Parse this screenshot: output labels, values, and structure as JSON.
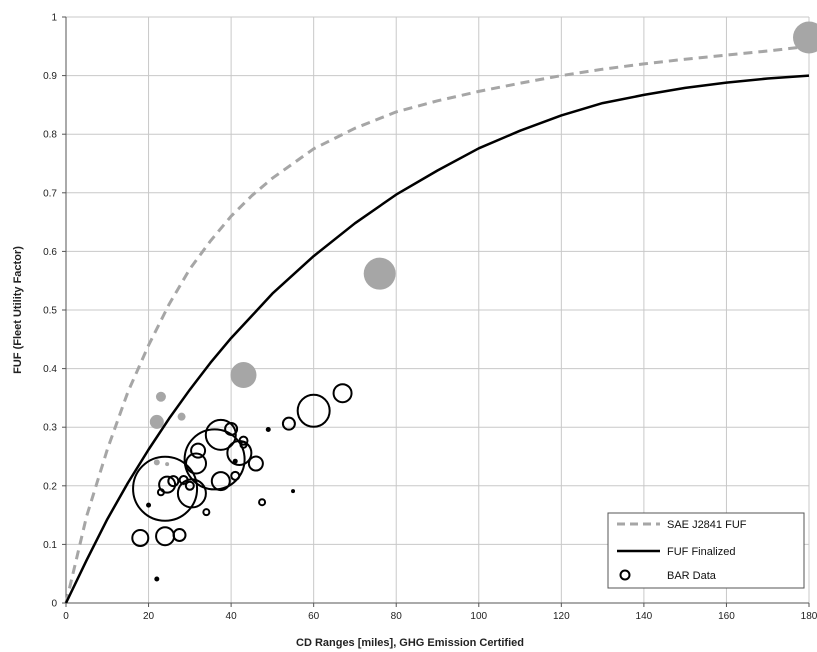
{
  "chart_data": {
    "type": "scatter",
    "xlabel": "CD Ranges [miles], GHG Emission Certified",
    "ylabel": "FUF (Fleet Utility Factor)",
    "xlim": [
      0,
      180
    ],
    "ylim": [
      0,
      1
    ],
    "x_ticks": [
      "0",
      "20",
      "40",
      "60",
      "80",
      "100",
      "120",
      "140",
      "160",
      "180"
    ],
    "y_ticks": [
      "0",
      "0.1",
      "0.2",
      "0.3",
      "0.4",
      "0.5",
      "0.6",
      "0.7",
      "0.8",
      "0.9",
      "1"
    ],
    "grid": true,
    "legend_position": "bottom-right",
    "colors": {
      "sae": "#a6a6a6",
      "finalized": "#000000",
      "bar": "#000000",
      "gray_bubble": "#a6a6a6"
    },
    "series": [
      {
        "name": "SAE J2841 FUF",
        "kind": "line",
        "style": "dashed",
        "color": "#a6a6a6",
        "points": [
          [
            0,
            0
          ],
          [
            5,
            0.148
          ],
          [
            10,
            0.262
          ],
          [
            15,
            0.36
          ],
          [
            20,
            0.44
          ],
          [
            25,
            0.51
          ],
          [
            30,
            0.57
          ],
          [
            35,
            0.618
          ],
          [
            40,
            0.66
          ],
          [
            45,
            0.695
          ],
          [
            50,
            0.725
          ],
          [
            60,
            0.775
          ],
          [
            70,
            0.81
          ],
          [
            80,
            0.838
          ],
          [
            90,
            0.857
          ],
          [
            100,
            0.873
          ],
          [
            110,
            0.887
          ],
          [
            120,
            0.9
          ],
          [
            130,
            0.911
          ],
          [
            140,
            0.92
          ],
          [
            150,
            0.928
          ],
          [
            160,
            0.935
          ],
          [
            170,
            0.942
          ],
          [
            180,
            0.95
          ]
        ]
      },
      {
        "name": "FUF Finalized",
        "kind": "line",
        "style": "solid",
        "color": "#000000",
        "points": [
          [
            0,
            0
          ],
          [
            5,
            0.073
          ],
          [
            10,
            0.143
          ],
          [
            15,
            0.205
          ],
          [
            20,
            0.262
          ],
          [
            25,
            0.315
          ],
          [
            30,
            0.364
          ],
          [
            35,
            0.41
          ],
          [
            40,
            0.452
          ],
          [
            45,
            0.49
          ],
          [
            50,
            0.528
          ],
          [
            60,
            0.592
          ],
          [
            70,
            0.648
          ],
          [
            80,
            0.697
          ],
          [
            90,
            0.738
          ],
          [
            100,
            0.776
          ],
          [
            110,
            0.806
          ],
          [
            120,
            0.832
          ],
          [
            130,
            0.853
          ],
          [
            140,
            0.867
          ],
          [
            150,
            0.879
          ],
          [
            160,
            0.888
          ],
          [
            170,
            0.895
          ],
          [
            180,
            0.9
          ]
        ]
      },
      {
        "name": "",
        "kind": "bubble",
        "filled": true,
        "color": "#a6a6a6",
        "points": [
          {
            "x": 180,
            "y": 0.965,
            "r": 16
          },
          {
            "x": 76,
            "y": 0.562,
            "r": 16
          },
          {
            "x": 43,
            "y": 0.389,
            "r": 13
          },
          {
            "x": 22,
            "y": 0.309,
            "r": 7
          },
          {
            "x": 23,
            "y": 0.352,
            "r": 5
          },
          {
            "x": 28,
            "y": 0.318,
            "r": 4
          },
          {
            "x": 22,
            "y": 0.24,
            "r": 3
          },
          {
            "x": 24.5,
            "y": 0.237,
            "r": 2
          }
        ]
      },
      {
        "name": "BAR Data",
        "kind": "bubble",
        "filled": false,
        "color": "#000000",
        "points": [
          {
            "x": 24,
            "y": 0.195,
            "r": 32
          },
          {
            "x": 36,
            "y": 0.245,
            "r": 30
          },
          {
            "x": 37.5,
            "y": 0.287,
            "r": 15
          },
          {
            "x": 60,
            "y": 0.328,
            "r": 16
          },
          {
            "x": 67,
            "y": 0.358,
            "r": 9
          },
          {
            "x": 30.5,
            "y": 0.187,
            "r": 14
          },
          {
            "x": 31.5,
            "y": 0.238,
            "r": 10
          },
          {
            "x": 32,
            "y": 0.26,
            "r": 7
          },
          {
            "x": 42,
            "y": 0.256,
            "r": 12
          },
          {
            "x": 37.5,
            "y": 0.208,
            "r": 9
          },
          {
            "x": 24.5,
            "y": 0.202,
            "r": 8
          },
          {
            "x": 24,
            "y": 0.114,
            "r": 9
          },
          {
            "x": 18,
            "y": 0.111,
            "r": 8
          },
          {
            "x": 27.5,
            "y": 0.116,
            "r": 6
          },
          {
            "x": 46,
            "y": 0.238,
            "r": 7
          },
          {
            "x": 40,
            "y": 0.297,
            "r": 6
          },
          {
            "x": 54,
            "y": 0.306,
            "r": 6
          },
          {
            "x": 26,
            "y": 0.208,
            "r": 5
          },
          {
            "x": 28.5,
            "y": 0.21,
            "r": 4
          },
          {
            "x": 30,
            "y": 0.2,
            "r": 4
          },
          {
            "x": 41,
            "y": 0.217,
            "r": 4
          },
          {
            "x": 43,
            "y": 0.277,
            "r": 4
          },
          {
            "x": 43,
            "y": 0.27,
            "r": 3
          },
          {
            "x": 34,
            "y": 0.155,
            "r": 3
          },
          {
            "x": 47.5,
            "y": 0.172,
            "r": 3
          },
          {
            "x": 23,
            "y": 0.189,
            "r": 3
          },
          {
            "x": 20,
            "y": 0.167,
            "r": 2
          },
          {
            "x": 41,
            "y": 0.242,
            "r": 2
          },
          {
            "x": 49,
            "y": 0.296,
            "r": 2
          },
          {
            "x": 55,
            "y": 0.191,
            "r": 1.5
          },
          {
            "x": 22,
            "y": 0.041,
            "r": 2
          }
        ]
      }
    ],
    "legend": [
      {
        "label": "SAE J2841 FUF",
        "style": "dashed",
        "color": "#a6a6a6"
      },
      {
        "label": "FUF Finalized",
        "style": "solid",
        "color": "#000000"
      },
      {
        "label": "BAR Data",
        "style": "circle",
        "color": "#000000"
      }
    ]
  }
}
